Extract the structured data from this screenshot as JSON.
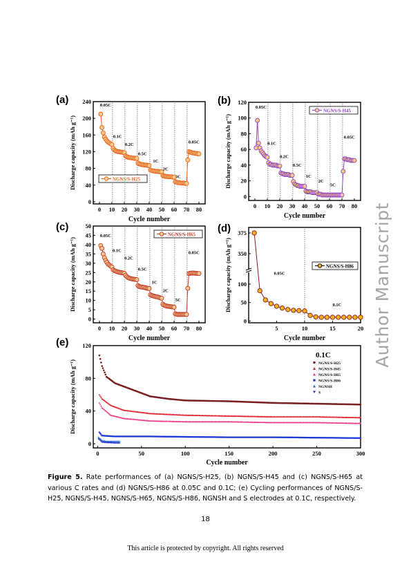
{
  "watermark": "Author Manuscript",
  "caption": {
    "label": "Figure 5.",
    "text": "Rate performances of (a) NGNS/S-H25, (b) NGNS/S-H45 and (c) NGNS/S-H65 at various C rates and (d) NGNS/S-H86 at 0.05C and 0.1C; (e) Cycling performances of NGNS/S-H25, NGNS/S-H45, NGNS/S-H65, NGNS/S-H86, NGNSH and S electrodes at 0.1C, respectively."
  },
  "page_number": "18",
  "copyright": "This article is protected by copyright. All rights reserved",
  "chart_data": [
    {
      "panel": "(a)",
      "type": "scatter",
      "xlabel": "Cycle number",
      "ylabel": "Discharge capacity (mAh g⁻¹)",
      "xlim": [
        -5,
        85
      ],
      "ylim": [
        -5,
        240
      ],
      "xticks": [
        0,
        10,
        20,
        30,
        40,
        50,
        60,
        70,
        80
      ],
      "yticks": [
        0,
        40,
        80,
        120,
        160,
        200,
        240
      ],
      "color": "#e8621c",
      "legend": [
        "NGNS/S-H25"
      ],
      "legend_position": "bottom-left",
      "dividers": [
        10,
        20,
        30,
        40,
        50,
        60,
        70
      ],
      "rate_labels": [
        {
          "text": "0.05C",
          "x": 0.5,
          "y": 228
        },
        {
          "text": "0.1C",
          "x": 11,
          "y": 153
        },
        {
          "text": "0.2C",
          "x": 20.5,
          "y": 134
        },
        {
          "text": "0.5C",
          "x": 31,
          "y": 112
        },
        {
          "text": "1C",
          "x": 43,
          "y": 94
        },
        {
          "text": "2C",
          "x": 51,
          "y": 75
        },
        {
          "text": "5C",
          "x": 61,
          "y": 57
        },
        {
          "text": "0.05C",
          "x": 71.5,
          "y": 140
        }
      ],
      "series": [
        {
          "name": "NGNS/S-H25",
          "x": [
            1,
            2,
            3,
            4,
            5,
            6,
            7,
            8,
            9,
            10,
            11,
            12,
            13,
            14,
            15,
            16,
            17,
            18,
            19,
            20,
            21,
            22,
            23,
            24,
            25,
            26,
            27,
            28,
            29,
            30,
            31,
            32,
            33,
            34,
            35,
            36,
            37,
            38,
            39,
            40,
            41,
            42,
            43,
            44,
            45,
            46,
            47,
            48,
            49,
            50,
            51,
            52,
            53,
            54,
            55,
            56,
            57,
            58,
            59,
            60,
            61,
            62,
            63,
            64,
            65,
            66,
            67,
            68,
            69,
            70,
            71,
            72,
            73,
            74,
            75,
            76,
            77,
            78,
            79,
            80
          ],
          "y": [
            210,
            178,
            165,
            155,
            150,
            146,
            143,
            141,
            139,
            137,
            128,
            124,
            122,
            121,
            120,
            120,
            119,
            119,
            118,
            118,
            110,
            108,
            107,
            106,
            106,
            105,
            105,
            104,
            104,
            104,
            93,
            91,
            90,
            89,
            89,
            88,
            88,
            88,
            87,
            87,
            76,
            75,
            74,
            74,
            73,
            73,
            73,
            72,
            72,
            72,
            63,
            62,
            61,
            61,
            60,
            60,
            60,
            60,
            59,
            59,
            48,
            47,
            46,
            46,
            45,
            45,
            45,
            45,
            44,
            44,
            100,
            120,
            119,
            118,
            117,
            117,
            116,
            116,
            115,
            115
          ]
        }
      ]
    },
    {
      "panel": "(b)",
      "type": "scatter",
      "xlabel": "Cycle number",
      "ylabel": "Discharge capacity (mAh g⁻¹)",
      "xlim": [
        -5,
        85
      ],
      "ylim": [
        -5,
        120
      ],
      "xticks": [
        0,
        10,
        20,
        30,
        40,
        50,
        60,
        70,
        80
      ],
      "yticks": [
        0,
        20,
        40,
        60,
        80,
        100,
        120
      ],
      "color": "#8e44c4",
      "legend": [
        "NGNS/S-H45"
      ],
      "legend_position": "top-right",
      "dividers": [
        10,
        20,
        30,
        40,
        50,
        60,
        70
      ],
      "rate_labels": [
        {
          "text": "0.05C",
          "x": 0.5,
          "y": 112
        },
        {
          "text": "0.1C",
          "x": 10,
          "y": 66
        },
        {
          "text": "0.2C",
          "x": 20,
          "y": 49
        },
        {
          "text": "0.5C",
          "x": 30.5,
          "y": 38
        },
        {
          "text": "1C",
          "x": 41,
          "y": 24
        },
        {
          "text": "2C",
          "x": 51,
          "y": 18
        },
        {
          "text": "5C",
          "x": 60.5,
          "y": 13
        },
        {
          "text": "0.05C",
          "x": 71.5,
          "y": 74
        }
      ],
      "series": [
        {
          "name": "NGNS/S-H45",
          "x": [
            1,
            2,
            3,
            4,
            5,
            6,
            7,
            8,
            9,
            10,
            11,
            12,
            13,
            14,
            15,
            16,
            17,
            18,
            19,
            20,
            21,
            22,
            23,
            24,
            25,
            26,
            27,
            28,
            29,
            30,
            31,
            32,
            33,
            34,
            35,
            36,
            37,
            38,
            39,
            40,
            41,
            42,
            43,
            44,
            45,
            46,
            47,
            48,
            49,
            50,
            51,
            52,
            53,
            54,
            55,
            56,
            57,
            58,
            59,
            60,
            61,
            62,
            63,
            64,
            65,
            66,
            67,
            68,
            69,
            70,
            71,
            72,
            73,
            74,
            75,
            76,
            77,
            78,
            79,
            80
          ],
          "y": [
            62,
            97,
            68,
            62,
            58,
            56,
            54,
            52,
            51,
            50,
            43,
            41,
            41,
            40,
            40,
            40,
            40,
            39,
            39,
            39,
            30,
            29,
            29,
            28,
            28,
            28,
            28,
            27,
            27,
            27,
            19,
            16,
            15,
            14,
            14,
            13,
            13,
            13,
            13,
            13,
            7,
            6,
            6,
            6,
            6,
            5,
            5,
            5,
            5,
            5,
            3,
            3,
            3,
            2,
            2,
            2,
            2,
            2,
            2,
            2,
            2,
            2,
            2,
            2,
            2,
            2,
            2,
            2,
            2,
            2,
            32,
            48,
            48,
            47,
            47,
            47,
            46,
            46,
            46,
            46
          ]
        }
      ]
    },
    {
      "panel": "(c)",
      "type": "scatter",
      "xlabel": "Cycle number",
      "ylabel": "Discharge capacity (mAh g⁻¹)",
      "xlim": [
        -5,
        85
      ],
      "ylim": [
        -2,
        50
      ],
      "xticks": [
        0,
        10,
        20,
        30,
        40,
        50,
        60,
        70,
        80
      ],
      "yticks": [
        0,
        5,
        10,
        15,
        20,
        25,
        30,
        35,
        40,
        45,
        50
      ],
      "color": "#c0392b",
      "legend": [
        "NGNS/S-H65"
      ],
      "legend_position": "top-right",
      "dividers": [
        10,
        20,
        30,
        40,
        50,
        60,
        70
      ],
      "rate_labels": [
        {
          "text": "0.05C",
          "x": 0.5,
          "y": 44
        },
        {
          "text": "0.1C",
          "x": 10.5,
          "y": 36
        },
        {
          "text": "0.2C",
          "x": 20,
          "y": 32
        },
        {
          "text": "0.5C",
          "x": 31,
          "y": 26
        },
        {
          "text": "1C",
          "x": 42,
          "y": 19
        },
        {
          "text": "2C",
          "x": 51,
          "y": 14.5
        },
        {
          "text": "5C",
          "x": 61,
          "y": 9.5
        },
        {
          "text": "0.05C",
          "x": 71.5,
          "y": 35
        }
      ],
      "series": [
        {
          "name": "NGNS/S-H65",
          "x": [
            1,
            2,
            3,
            4,
            5,
            6,
            7,
            8,
            9,
            10,
            11,
            12,
            13,
            14,
            15,
            16,
            17,
            18,
            19,
            20,
            21,
            22,
            23,
            24,
            25,
            26,
            27,
            28,
            29,
            30,
            31,
            32,
            33,
            34,
            35,
            36,
            37,
            38,
            39,
            40,
            41,
            42,
            43,
            44,
            45,
            46,
            47,
            48,
            49,
            50,
            51,
            52,
            53,
            54,
            55,
            56,
            57,
            58,
            59,
            60,
            61,
            62,
            63,
            64,
            65,
            66,
            67,
            68,
            69,
            70,
            71,
            72,
            73,
            74,
            75,
            76,
            77,
            78,
            79,
            80
          ],
          "y": [
            39.5,
            38,
            35,
            33,
            31.5,
            30.5,
            29.5,
            29,
            28.5,
            28,
            26.5,
            26,
            25.8,
            25.5,
            25.3,
            25.1,
            25,
            24.9,
            24.8,
            24.6,
            23.5,
            22.8,
            22.3,
            22,
            21.8,
            21.6,
            21.5,
            21.4,
            21.3,
            21.2,
            18,
            17.5,
            17.3,
            17.2,
            17.1,
            17,
            16.8,
            16.6,
            16.5,
            16.4,
            13,
            12.7,
            12.5,
            12.3,
            12.1,
            12,
            11.8,
            11.6,
            11.4,
            11.2,
            8,
            7.5,
            7.2,
            7,
            6.9,
            6.8,
            6.7,
            6.6,
            6.5,
            6.4,
            2.8,
            2.6,
            2.5,
            2.5,
            2.5,
            2.5,
            2.5,
            2.5,
            2.5,
            2.5,
            16.5,
            24.5,
            24.6,
            24.7,
            24.7,
            24.7,
            24.6,
            24.6,
            24.5,
            24.5
          ]
        }
      ]
    },
    {
      "panel": "(d)",
      "type": "scatter",
      "xlabel": "Cycle number",
      "ylabel": "Discharge capacity (mAh g⁻¹)",
      "xlim": [
        0,
        20
      ],
      "axis_break": true,
      "upper_yticks": [
        350,
        375
      ],
      "lower_yticks": [
        0,
        50,
        100
      ],
      "xticks": [
        5,
        10,
        15,
        20
      ],
      "color": "#e6a817",
      "legend": [
        "NGNS/S-H86"
      ],
      "legend_position": "right",
      "dividers": [
        10
      ],
      "rate_labels": [
        {
          "text": "0.05C",
          "x": 4.5,
          "y": 125
        },
        {
          "text": "0.1C",
          "x": 15,
          "y": 40
        }
      ],
      "series": [
        {
          "name": "NGNS/S-H86",
          "x": [
            1,
            2,
            3,
            4,
            5,
            6,
            7,
            8,
            9,
            10,
            11,
            12,
            13,
            14,
            15,
            16,
            17,
            18,
            19,
            20
          ],
          "y": [
            375,
            82,
            57,
            47,
            40,
            35,
            31,
            29,
            28,
            27,
            15,
            11,
            10,
            10,
            10,
            10,
            10,
            10,
            10,
            10
          ]
        }
      ]
    },
    {
      "panel": "(e)",
      "type": "scatter",
      "xlabel": "Cycle number",
      "ylabel": "Discharge capacity (mAh g⁻¹)",
      "xlim": [
        -5,
        300
      ],
      "ylim": [
        -5,
        120
      ],
      "xticks": [
        0,
        50,
        100,
        150,
        200,
        250,
        300
      ],
      "yticks": [
        0,
        40,
        80,
        120
      ],
      "annotation": "0.1C",
      "legend_position": "top-right",
      "series": [
        {
          "name": "NGNS/S-H25",
          "color": "#7a2020",
          "marker": "circle",
          "level": [
            [
              2,
              108
            ],
            [
              5,
              95
            ],
            [
              10,
              82
            ],
            [
              20,
              74
            ],
            [
              40,
              66
            ],
            [
              60,
              58
            ],
            [
              80,
              55
            ],
            [
              100,
              53
            ],
            [
              150,
              52
            ],
            [
              200,
              50
            ],
            [
              250,
              49
            ],
            [
              300,
              48
            ]
          ]
        },
        {
          "name": "NGNS/S-H45",
          "color": "#e0202a",
          "marker": "triangle",
          "level": [
            [
              2,
              60
            ],
            [
              5,
              55
            ],
            [
              15,
              47
            ],
            [
              30,
              41
            ],
            [
              60,
              37
            ],
            [
              100,
              35
            ],
            [
              150,
              34
            ],
            [
              200,
              33
            ],
            [
              250,
              33
            ],
            [
              300,
              32
            ]
          ]
        },
        {
          "name": "NGNS/S-H65",
          "color": "#ee3a8c",
          "marker": "triangle",
          "level": [
            [
              2,
              50
            ],
            [
              5,
              44
            ],
            [
              15,
              35
            ],
            [
              30,
              31
            ],
            [
              60,
              28
            ],
            [
              100,
              27
            ],
            [
              150,
              27
            ],
            [
              200,
              26
            ],
            [
              250,
              26
            ],
            [
              300,
              25
            ]
          ]
        },
        {
          "name": "NGNS/S-H86",
          "color": "#1f3ad6",
          "marker": "square",
          "level": [
            [
              2,
              14
            ],
            [
              5,
              10
            ],
            [
              20,
              9
            ],
            [
              60,
              9
            ],
            [
              100,
              8.5
            ],
            [
              150,
              8
            ],
            [
              200,
              8
            ],
            [
              250,
              7.5
            ],
            [
              300,
              7
            ]
          ]
        },
        {
          "name": "NGNSH",
          "color": "#2b6ad9",
          "marker": "triangle",
          "level": [
            [
              1,
              8
            ],
            [
              5,
              4
            ],
            [
              10,
              3
            ],
            [
              20,
              3
            ],
            [
              25,
              3
            ]
          ]
        },
        {
          "name": "S",
          "color": "#2233cc",
          "marker": "triangle-down",
          "level": [
            [
              1,
              6
            ],
            [
              5,
              2
            ],
            [
              10,
              1.5
            ],
            [
              20,
              1
            ],
            [
              25,
              1
            ]
          ]
        }
      ]
    }
  ]
}
